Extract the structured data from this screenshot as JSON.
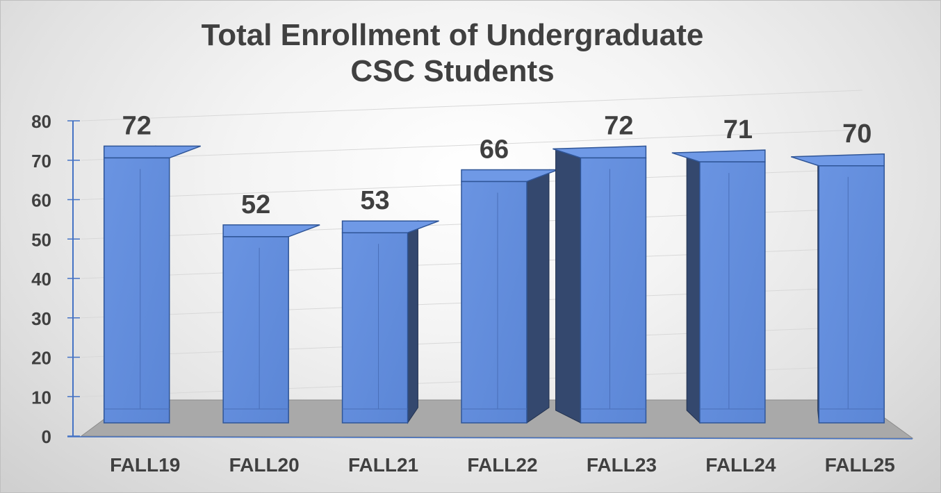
{
  "chart_data": {
    "type": "bar",
    "title": [
      "Total Enrollment of Undergraduate",
      "CSC Students"
    ],
    "categories": [
      "FALL19",
      "FALL20",
      "FALL21",
      "FALL22",
      "FALL23",
      "FALL24",
      "FALL25"
    ],
    "values": [
      72,
      52,
      53,
      66,
      72,
      71,
      70
    ],
    "ylim": [
      0,
      80
    ],
    "yticks": [
      0,
      10,
      20,
      30,
      40,
      50,
      60,
      70,
      80
    ],
    "xlabel": "",
    "ylabel": "",
    "grid": true,
    "legend": "none",
    "style": "3d-column",
    "colors": {
      "bar_front": "#5b86d6",
      "bar_side_dark": "#34486e",
      "bar_top": "#6f99e6",
      "axis": "#4472c4",
      "text": "#404040"
    }
  }
}
